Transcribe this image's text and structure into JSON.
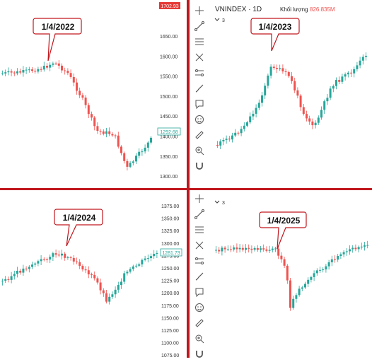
{
  "q1": {
    "callout": "1/4/2022",
    "price_labels": [
      "1702.93",
      "1650.00",
      "1600.00",
      "1550.00",
      "1500.00",
      "1450.00",
      "1400.00",
      "1350.00",
      "1300.00",
      "1250.00",
      "1200.00",
      "1150.00",
      "1100.00"
    ],
    "last_price": "1292.68",
    "top_price": "1702.93"
  },
  "q2": {
    "symbol": "VNINDEX · 1D",
    "volume_label": "Khối lượng",
    "volume_value": "826.835M",
    "indicator_count": "3",
    "callout": "1/4/2023"
  },
  "q3": {
    "callout": "1/4/2024",
    "price_labels": [
      "1375.00",
      "1350.00",
      "1325.00",
      "1300.00",
      "1275.00",
      "1250.00",
      "1225.00",
      "1200.00",
      "1175.00",
      "1150.00",
      "1125.00",
      "1100.00",
      "1075.00"
    ],
    "last_price": "1281.73"
  },
  "q4": {
    "indicator_count": "3",
    "callout": "1/4/2025"
  },
  "toolbar_icons": [
    "crosshair-icon",
    "trend-line-icon",
    "fib-icon",
    "pattern-icon",
    "projection-icon",
    "brush-icon",
    "note-icon",
    "emoji-icon",
    "ruler-icon",
    "zoom-icon",
    "magnet-icon"
  ],
  "colors": {
    "up": "#26a69a",
    "down": "#ef5350",
    "divider": "#c0171d",
    "callout_border": "#c0171d"
  }
}
